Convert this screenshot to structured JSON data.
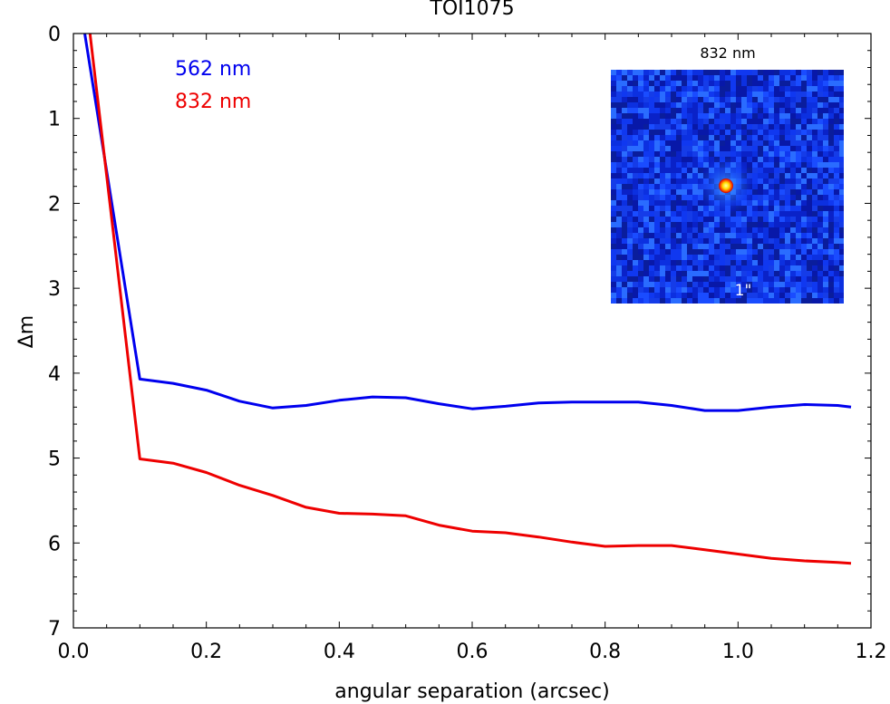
{
  "chart_data": {
    "type": "line",
    "title": "TOI1075",
    "xlabel": "angular separation (arcsec)",
    "ylabel": "Δm",
    "xlim": [
      0.0,
      1.2
    ],
    "ylim": [
      7,
      0
    ],
    "y_inverted": true,
    "xticks": [
      0.0,
      0.2,
      0.4,
      0.6,
      0.8,
      1.0,
      1.2
    ],
    "xtick_labels": [
      "0.0",
      "0.2",
      "0.4",
      "0.6",
      "0.8",
      "1.0",
      "1.2"
    ],
    "yticks": [
      0,
      1,
      2,
      3,
      4,
      5,
      6,
      7
    ],
    "ytick_labels": [
      "0",
      "1",
      "2",
      "3",
      "4",
      "5",
      "6",
      "7"
    ],
    "legend_position": "top-left",
    "series": [
      {
        "name": "562 nm",
        "color": "#0000ee",
        "x": [
          0.017,
          0.1,
          0.15,
          0.2,
          0.25,
          0.3,
          0.35,
          0.4,
          0.45,
          0.5,
          0.55,
          0.6,
          0.65,
          0.7,
          0.75,
          0.8,
          0.85,
          0.9,
          0.95,
          1.0,
          1.05,
          1.1,
          1.15,
          1.17
        ],
        "y": [
          0.0,
          4.07,
          4.12,
          4.2,
          4.33,
          4.41,
          4.38,
          4.32,
          4.28,
          4.29,
          4.36,
          4.42,
          4.39,
          4.35,
          4.34,
          4.34,
          4.34,
          4.38,
          4.44,
          4.44,
          4.4,
          4.37,
          4.38,
          4.4
        ]
      },
      {
        "name": "832 nm",
        "color": "#ee0000",
        "x": [
          0.025,
          0.1,
          0.15,
          0.2,
          0.25,
          0.3,
          0.35,
          0.4,
          0.45,
          0.5,
          0.55,
          0.6,
          0.65,
          0.7,
          0.75,
          0.8,
          0.85,
          0.9,
          0.95,
          1.0,
          1.05,
          1.1,
          1.15,
          1.17
        ],
        "y": [
          0.0,
          5.01,
          5.06,
          5.17,
          5.32,
          5.44,
          5.58,
          5.65,
          5.66,
          5.68,
          5.79,
          5.86,
          5.88,
          5.93,
          5.99,
          6.04,
          6.03,
          6.03,
          6.08,
          6.13,
          6.18,
          6.21,
          6.23,
          6.24
        ]
      }
    ],
    "inset": {
      "title": "832 nm",
      "scale_label": "1\"",
      "background_color": "#0b2bd6",
      "star_color": "#ffdd00"
    }
  }
}
